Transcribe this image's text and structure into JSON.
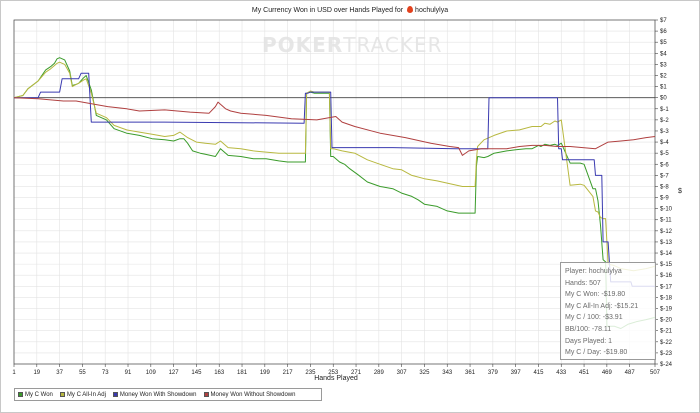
{
  "title": "My Currency Won in USD over Hands Played for",
  "player_name": "hochulylya",
  "watermark": {
    "bold": "POKER",
    "light": "TRACKER"
  },
  "info_box": [
    "Player: hochulylya",
    "Hands: 507",
    "My C Won: -$19.80",
    "My C All-In Adj: -$15.21",
    "My C / 100: -$3.91",
    "BB/100: -78.11",
    "Days Played: 1",
    "My C / Day: -$19.80"
  ],
  "colors": {
    "won": "#3a9b2a",
    "allin": "#b8b840",
    "showdown": "#3a3ab0",
    "noshowdown": "#b04040",
    "grid": "#e3e3e3",
    "axis": "#444444",
    "zero": "#444444"
  },
  "chart_data": {
    "type": "line",
    "title": "My Currency Won in USD over Hands Played for hochulylya",
    "xlabel": "Hands Played",
    "ylabel": "$",
    "xlim": [
      1,
      507
    ],
    "ylim": [
      -24,
      7
    ],
    "x_ticks": [
      1,
      19,
      37,
      55,
      73,
      91,
      109,
      127,
      145,
      163,
      181,
      199,
      217,
      235,
      253,
      271,
      289,
      307,
      325,
      343,
      361,
      379,
      397,
      415,
      433,
      451,
      469,
      487,
      507
    ],
    "y_ticks": [
      7,
      6,
      5,
      4,
      3,
      2,
      1,
      0,
      -1,
      -2,
      -3,
      -4,
      -5,
      -6,
      -7,
      -8,
      -9,
      -10,
      -11,
      -12,
      -13,
      -14,
      -15,
      -16,
      -17,
      -18,
      -19,
      -20,
      -21,
      -22,
      -23,
      -24
    ],
    "y_tick_labels": [
      "$7",
      "$6",
      "$5",
      "$4",
      "$3",
      "$2",
      "$1",
      "$0",
      "$-1",
      "$-2",
      "$-3",
      "$-4",
      "$-5",
      "$-6",
      "$-7",
      "$-8",
      "$-9",
      "$-10",
      "$-11",
      "$-12",
      "$-13",
      "$-14",
      "$-15",
      "$-16",
      "$-17",
      "$-18",
      "$-19",
      "$-20",
      "$-21",
      "$-22",
      "$-23",
      "$-24"
    ],
    "grid": true,
    "legend_position": "bottom-left",
    "series": [
      {
        "name": "My C Won",
        "color": "#3a9b2a",
        "x": [
          1,
          8,
          12,
          20,
          26,
          30,
          33,
          35,
          37,
          41,
          45,
          47,
          50,
          52,
          56,
          58,
          62,
          66,
          70,
          74,
          80,
          90,
          100,
          110,
          120,
          127,
          132,
          135,
          138,
          142,
          148,
          152,
          160,
          164,
          170,
          180,
          190,
          200,
          210,
          217,
          225,
          231,
          232,
          235,
          238,
          250,
          251,
          253,
          258,
          262,
          266,
          272,
          280,
          290,
          300,
          307,
          315,
          320,
          325,
          335,
          343,
          352,
          362,
          365,
          366,
          367,
          372,
          375,
          380,
          390,
          397,
          405,
          410,
          415,
          417,
          420,
          424,
          428,
          430,
          433,
          440,
          448,
          451,
          458,
          460,
          462,
          464,
          466,
          468,
          469,
          472,
          475,
          480,
          486,
          492,
          500,
          507
        ],
        "y": [
          0,
          0.2,
          0.8,
          1.5,
          2.5,
          2.8,
          3.1,
          3.5,
          3.6,
          3.4,
          2.4,
          1.1,
          1.2,
          1.3,
          1.8,
          2.0,
          0.7,
          -1.6,
          -1.8,
          -2.0,
          -2.8,
          -3.2,
          -3.4,
          -3.7,
          -3.8,
          -3.9,
          -3.7,
          -3.7,
          -4.1,
          -4.8,
          -5.0,
          -5.1,
          -5.3,
          -4.6,
          -5.2,
          -5.3,
          -5.5,
          -5.5,
          -5.7,
          -5.8,
          -5.8,
          -5.8,
          0.4,
          0.5,
          0.4,
          0.4,
          -5.3,
          -5.3,
          -5.8,
          -6.0,
          -6.4,
          -6.9,
          -7.6,
          -8.0,
          -8.2,
          -8.6,
          -8.9,
          -9.2,
          -9.6,
          -9.8,
          -10.2,
          -10.4,
          -10.4,
          -10.4,
          -6.2,
          -5.3,
          -5.4,
          -5.3,
          -5.0,
          -4.8,
          -4.7,
          -4.6,
          -4.6,
          -4.3,
          -4.4,
          -4.2,
          -4.3,
          -4.2,
          -4.3,
          -4.1,
          -5.9,
          -5.9,
          -6.0,
          -8.2,
          -8.2,
          -9.3,
          -11.5,
          -14.6,
          -14.8,
          -20.6,
          -20.6,
          -20.6,
          -20.8,
          -20.4,
          -20.2,
          -20.0,
          -19.8
        ]
      },
      {
        "name": "My C All-In Adj",
        "color": "#b8b840",
        "x": [
          1,
          8,
          12,
          20,
          26,
          30,
          33,
          35,
          37,
          41,
          45,
          47,
          50,
          52,
          56,
          58,
          62,
          66,
          70,
          74,
          80,
          90,
          100,
          110,
          120,
          127,
          132,
          138,
          145,
          152,
          160,
          164,
          170,
          180,
          190,
          200,
          210,
          217,
          231,
          232,
          235,
          238,
          250,
          251,
          253,
          260,
          270,
          280,
          290,
          300,
          307,
          315,
          325,
          335,
          343,
          355,
          362,
          365,
          366,
          367,
          372,
          380,
          390,
          400,
          410,
          415,
          417,
          420,
          424,
          428,
          430,
          433,
          440,
          448,
          451,
          458,
          460,
          462,
          464,
          466,
          468,
          470,
          474,
          480,
          490,
          500,
          507
        ],
        "y": [
          0,
          0.2,
          0.8,
          1.5,
          2.3,
          2.6,
          2.9,
          3.1,
          3.2,
          3.0,
          2.2,
          1.0,
          1.2,
          1.3,
          1.6,
          1.7,
          0.4,
          -1.4,
          -1.6,
          -1.8,
          -2.5,
          -2.9,
          -3.1,
          -3.3,
          -3.5,
          -3.4,
          -3.1,
          -3.6,
          -4.0,
          -4.1,
          -4.2,
          -3.9,
          -4.5,
          -4.6,
          -4.8,
          -4.9,
          -5.0,
          -5.0,
          -5.0,
          0.4,
          0.6,
          0.5,
          0.5,
          -4.6,
          -4.6,
          -4.8,
          -5.0,
          -5.6,
          -6.0,
          -6.4,
          -6.5,
          -7.0,
          -7.3,
          -7.5,
          -7.7,
          -8.0,
          -8.0,
          -8.0,
          -5.6,
          -4.4,
          -3.8,
          -3.4,
          -3.0,
          -2.9,
          -2.6,
          -2.6,
          -2.6,
          -2.3,
          -2.4,
          -2.1,
          -2.2,
          -2.0,
          -7.9,
          -7.8,
          -7.9,
          -8.9,
          -10.2,
          -10.3,
          -10.8,
          -10.9,
          -10.9,
          -15.0,
          -15.1,
          -15.4,
          -15.6,
          -15.4,
          -15.2
        ]
      },
      {
        "name": "Money Won With Showdown",
        "color": "#3a3ab0",
        "x": [
          1,
          20,
          22,
          37,
          39,
          52,
          54,
          60,
          62,
          120,
          230,
          231,
          233,
          235,
          236,
          251,
          252,
          300,
          350,
          363,
          375,
          376,
          430,
          431,
          433,
          434,
          459,
          460,
          465,
          466,
          470,
          472,
          476,
          488,
          489,
          500,
          507
        ],
        "y": [
          0,
          0,
          0.5,
          0.5,
          1.7,
          1.7,
          2.2,
          2.2,
          -2.2,
          -2.2,
          -2.3,
          0.4,
          0.4,
          0.5,
          0.5,
          0.5,
          -4.5,
          -4.5,
          -4.6,
          -4.6,
          -4.6,
          0,
          0,
          -4.6,
          -4.6,
          -5.6,
          -5.6,
          -7.0,
          -7.0,
          -13.0,
          -13.0,
          -16.6,
          -16.6,
          -16.6,
          -17.0,
          -17.0,
          -17.0
        ]
      },
      {
        "name": "Money Won Without Showdown",
        "color": "#b04040",
        "x": [
          1,
          20,
          30,
          40,
          50,
          60,
          75,
          90,
          100,
          120,
          140,
          155,
          160,
          162,
          168,
          172,
          180,
          200,
          220,
          240,
          255,
          260,
          270,
          290,
          310,
          330,
          345,
          352,
          355,
          360,
          370,
          380,
          390,
          400,
          410,
          420,
          430,
          440,
          450,
          460,
          470,
          480,
          490,
          500,
          507
        ],
        "y": [
          0,
          -0.1,
          -0.2,
          -0.3,
          -0.3,
          -0.5,
          -0.8,
          -1.0,
          -1.2,
          -1.1,
          -1.3,
          -1.4,
          -0.8,
          -0.4,
          -1.0,
          -1.2,
          -1.4,
          -1.6,
          -1.9,
          -2.0,
          -1.7,
          -2.2,
          -2.6,
          -3.2,
          -3.6,
          -4.1,
          -4.4,
          -4.5,
          -5.2,
          -4.8,
          -4.6,
          -4.6,
          -4.6,
          -4.4,
          -4.3,
          -4.3,
          -4.4,
          -4.4,
          -4.5,
          -4.6,
          -4.0,
          -3.9,
          -3.8,
          -3.6,
          -3.5
        ]
      }
    ]
  }
}
